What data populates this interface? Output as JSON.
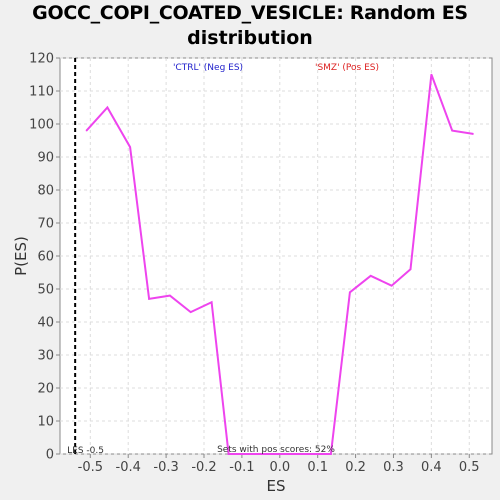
{
  "chart_data": {
    "type": "line",
    "title_line1": "GOCC_COPI_COATED_VESICLE: Random ES",
    "title_line2": "distribution",
    "xlabel": "ES",
    "ylabel": "P(ES)",
    "xlim": [
      -0.58,
      0.56
    ],
    "ylim": [
      0,
      120
    ],
    "x_ticks": [
      -0.5,
      -0.4,
      -0.3,
      -0.2,
      -0.1,
      0.0,
      0.1,
      0.2,
      0.3,
      0.4,
      0.5
    ],
    "x_tick_labels": [
      "-0.5",
      "-0.4",
      "-0.3",
      "-0.2",
      "-0.1",
      "0.0",
      "0.1",
      "0.2",
      "0.3",
      "0.4",
      "0.5"
    ],
    "y_ticks": [
      0,
      10,
      20,
      30,
      40,
      50,
      60,
      70,
      80,
      90,
      100,
      110,
      120
    ],
    "y_tick_labels": [
      "0",
      "10",
      "20",
      "30",
      "40",
      "50",
      "60",
      "70",
      "80",
      "90",
      "100",
      "110",
      "120"
    ],
    "grid": true,
    "series": [
      {
        "color": "#ee44ee",
        "x": [
          -0.51,
          -0.455,
          -0.395,
          -0.345,
          -0.29,
          -0.235,
          -0.18,
          -0.135,
          -0.08,
          -0.025,
          0.025,
          0.08,
          0.135,
          0.185,
          0.24,
          0.295,
          0.345,
          0.4,
          0.455,
          0.51
        ],
        "y": [
          98,
          105,
          93,
          47,
          48,
          43,
          46,
          0,
          0,
          0,
          0,
          0,
          0,
          49,
          54,
          51,
          56,
          115,
          98,
          97
        ]
      }
    ],
    "marker_line": {
      "x": -0.54,
      "label": "LES -0.5",
      "color": "#000000"
    },
    "annotations": {
      "neg_label": "'CTRL' (Neg ES)",
      "neg_color": "#2222cc",
      "pos_label": "'SMZ' (Pos ES)",
      "pos_color": "#dd2222",
      "pos_scores_text": "Sets with pos scores: 52%"
    }
  }
}
